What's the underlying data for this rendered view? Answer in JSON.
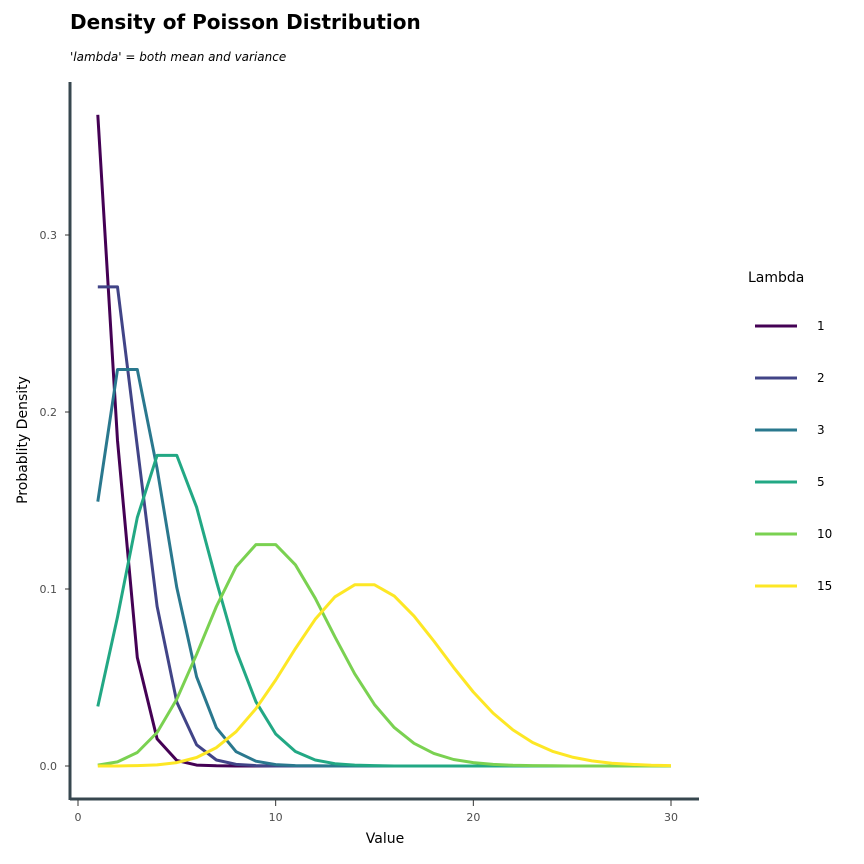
{
  "chart_data": {
    "type": "line",
    "title": "Density of Poisson Distribution",
    "subtitle": "'lambda' = both mean and variance",
    "xlabel": "Value",
    "ylabel": "Probablity Density",
    "xlim": [
      0,
      30
    ],
    "ylim": [
      0,
      0.37
    ],
    "xticks": [
      "0",
      "10",
      "20",
      "30"
    ],
    "yticks": [
      "0.0",
      "0.1",
      "0.2",
      "0.3"
    ],
    "legend_title": "Lambda",
    "legend_position": "right",
    "grid": false,
    "x": [
      1,
      2,
      3,
      4,
      5,
      6,
      7,
      8,
      9,
      10,
      11,
      12,
      13,
      14,
      15,
      16,
      17,
      18,
      19,
      20,
      21,
      22,
      23,
      24,
      25,
      26,
      27,
      28,
      29,
      30
    ],
    "series": [
      {
        "name": "1",
        "color": "#440154",
        "values": [
          0.3679,
          0.1839,
          0.0613,
          0.0153,
          0.0031,
          0.0005,
          0.0001,
          0.0,
          0.0,
          0.0,
          0.0,
          0.0,
          0.0,
          0.0,
          0.0,
          0.0,
          0.0,
          0.0,
          0.0,
          0.0,
          0.0,
          0.0,
          0.0,
          0.0,
          0.0,
          0.0,
          0.0,
          0.0,
          0.0,
          0.0
        ]
      },
      {
        "name": "2",
        "color": "#414487",
        "values": [
          0.2707,
          0.2707,
          0.1804,
          0.0902,
          0.0361,
          0.012,
          0.0034,
          0.0009,
          0.0002,
          0.0,
          0.0,
          0.0,
          0.0,
          0.0,
          0.0,
          0.0,
          0.0,
          0.0,
          0.0,
          0.0,
          0.0,
          0.0,
          0.0,
          0.0,
          0.0,
          0.0,
          0.0,
          0.0,
          0.0,
          0.0
        ]
      },
      {
        "name": "3",
        "color": "#2A788E",
        "values": [
          0.1494,
          0.224,
          0.224,
          0.168,
          0.1008,
          0.0504,
          0.0216,
          0.0081,
          0.0027,
          0.0008,
          0.0002,
          0.0001,
          0.0,
          0.0,
          0.0,
          0.0,
          0.0,
          0.0,
          0.0,
          0.0,
          0.0,
          0.0,
          0.0,
          0.0,
          0.0,
          0.0,
          0.0,
          0.0,
          0.0,
          0.0
        ]
      },
      {
        "name": "5",
        "color": "#22A884",
        "values": [
          0.0337,
          0.0842,
          0.1404,
          0.1755,
          0.1755,
          0.1462,
          0.1044,
          0.0653,
          0.0363,
          0.0181,
          0.0082,
          0.0034,
          0.0013,
          0.0005,
          0.0002,
          0.0,
          0.0,
          0.0,
          0.0,
          0.0,
          0.0,
          0.0,
          0.0,
          0.0,
          0.0,
          0.0,
          0.0,
          0.0,
          0.0,
          0.0
        ]
      },
      {
        "name": "10",
        "color": "#7AD151",
        "values": [
          0.0005,
          0.0023,
          0.0076,
          0.0189,
          0.0378,
          0.0631,
          0.0901,
          0.1126,
          0.1251,
          0.1251,
          0.1137,
          0.0948,
          0.0729,
          0.0521,
          0.0347,
          0.0217,
          0.0128,
          0.0071,
          0.0037,
          0.0019,
          0.0009,
          0.0004,
          0.0002,
          0.0001,
          0.0,
          0.0,
          0.0,
          0.0,
          0.0,
          0.0
        ]
      },
      {
        "name": "15",
        "color": "#FDE725",
        "values": [
          0.0,
          0.0,
          0.0002,
          0.0006,
          0.0019,
          0.0048,
          0.0104,
          0.0194,
          0.0324,
          0.0486,
          0.0663,
          0.0829,
          0.0956,
          0.1024,
          0.1024,
          0.096,
          0.0847,
          0.0706,
          0.0557,
          0.0418,
          0.0299,
          0.0204,
          0.0133,
          0.0083,
          0.005,
          0.0029,
          0.0016,
          0.0009,
          0.0004,
          0.0002
        ]
      }
    ]
  }
}
